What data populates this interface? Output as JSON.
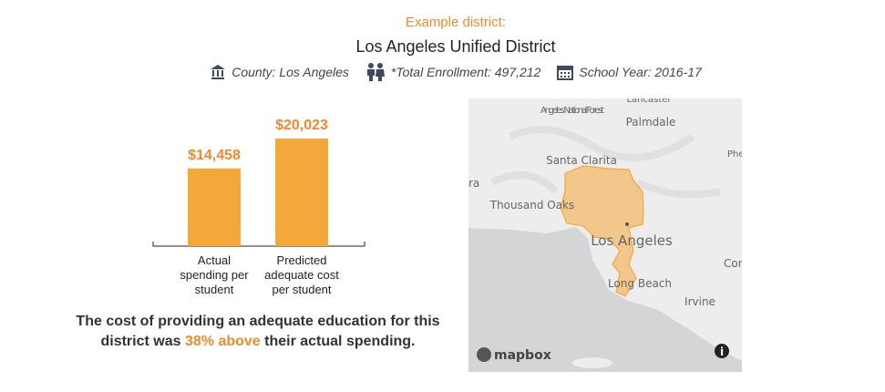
{
  "header": {
    "eyebrow": "Example district:",
    "title": "Los Angeles Unified District",
    "info": [
      "County: Los Angeles",
      "*Total Enrollment: 497,212",
      "School Year: 2016-17"
    ]
  },
  "chart_data": {
    "type": "bar",
    "categories": [
      "Actual spending per student",
      "Predicted adequate cost per student"
    ],
    "values": [
      14458,
      20023
    ],
    "value_labels": [
      "$14,458",
      "$20,023"
    ],
    "color": "#f4a83a",
    "label_color": "#f08a2c"
  },
  "summary": {
    "before": "The cost of providing an adequate education for this district was",
    "highlight": "38% above",
    "after": "their actual spending."
  },
  "map": {
    "labels": [
      "Lancaster",
      "Angeles National Forest",
      "Palmdale",
      "Santa Clarita",
      "Thousand Oaks",
      "Los Angeles",
      "Long Beach",
      "Irvine",
      "Cor",
      "Phe",
      "ra"
    ],
    "attribution": "mapbox"
  }
}
